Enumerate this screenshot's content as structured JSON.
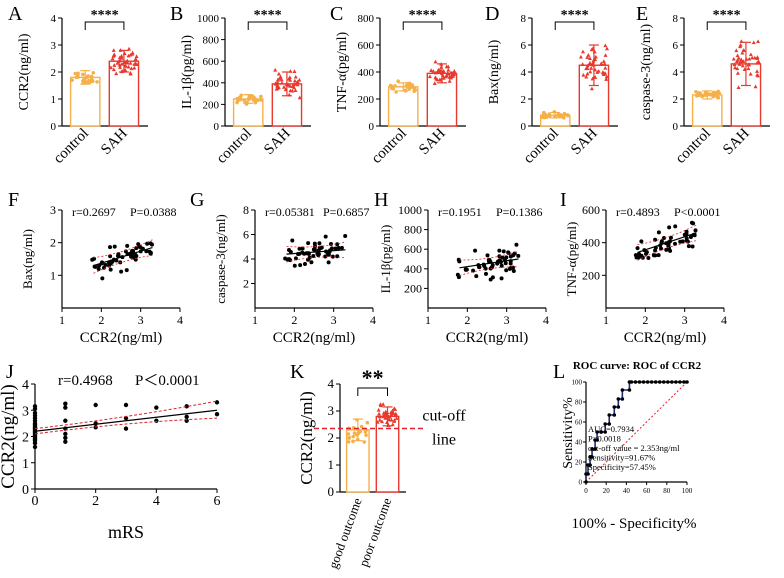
{
  "chart_data": [
    {
      "id": "A",
      "type": "bar",
      "panel_label": "A",
      "ylabel": "CCR2(ng/ml)",
      "ylim": [
        0,
        4
      ],
      "yticks": [
        0,
        1,
        2,
        3,
        4
      ],
      "categories": [
        "control",
        "SAH"
      ],
      "values": [
        1.8,
        2.4
      ],
      "errors": [
        0.25,
        0.4
      ],
      "significance": "****",
      "colors": [
        "#f5b04a",
        "#e8392f"
      ]
    },
    {
      "id": "B",
      "type": "bar",
      "panel_label": "B",
      "ylabel": "IL-1β(pg/ml)",
      "ylim": [
        0,
        1000
      ],
      "yticks": [
        0,
        200,
        400,
        600,
        800,
        1000
      ],
      "categories": [
        "control",
        "SAH"
      ],
      "values": [
        250,
        390
      ],
      "errors": [
        40,
        110
      ],
      "significance": "****",
      "colors": [
        "#f5b04a",
        "#e8392f"
      ]
    },
    {
      "id": "C",
      "type": "bar",
      "panel_label": "C",
      "ylabel": "TNF-α(pg/ml)",
      "ylim": [
        0,
        800
      ],
      "yticks": [
        0,
        200,
        400,
        600,
        800
      ],
      "categories": [
        "control",
        "SAH"
      ],
      "values": [
        290,
        390
      ],
      "errors": [
        30,
        70
      ],
      "significance": "****",
      "colors": [
        "#f5b04a",
        "#e8392f"
      ]
    },
    {
      "id": "D",
      "type": "bar",
      "panel_label": "D",
      "ylabel": "Bax(ng/ml)",
      "ylim": [
        0,
        8
      ],
      "yticks": [
        0,
        2,
        4,
        6,
        8
      ],
      "categories": [
        "control",
        "SAH"
      ],
      "values": [
        0.8,
        4.5
      ],
      "errors": [
        0.2,
        1.5
      ],
      "significance": "****",
      "colors": [
        "#f5b04a",
        "#e8392f"
      ]
    },
    {
      "id": "E",
      "type": "bar",
      "panel_label": "E",
      "ylabel": "caspase-3(ng/ml)",
      "ylim": [
        0,
        8
      ],
      "yticks": [
        0,
        2,
        4,
        6,
        8
      ],
      "categories": [
        "control",
        "SAH"
      ],
      "values": [
        2.3,
        4.6
      ],
      "errors": [
        0.3,
        1.6
      ],
      "significance": "****",
      "colors": [
        "#f5b04a",
        "#e8392f"
      ]
    },
    {
      "id": "F",
      "type": "scatter",
      "panel_label": "F",
      "xlabel": "CCR2(ng/ml)",
      "ylabel": "Bax(ng/ml)",
      "xlim": [
        1,
        4
      ],
      "ylim": [
        0,
        3
      ],
      "xticks": [
        1,
        2,
        3,
        4
      ],
      "yticks": [
        1,
        2,
        3
      ],
      "stat_r": "r=0.2697",
      "stat_p": "P=0.0388",
      "fit": {
        "x0": 1.8,
        "y0": 1.3,
        "x1": 3.3,
        "y1": 1.85
      },
      "seed": 11,
      "n_points": 55
    },
    {
      "id": "G",
      "type": "scatter",
      "panel_label": "G",
      "xlabel": "CCR2(ng/ml)",
      "ylabel": "caspase-3(ng/ml)",
      "xlim": [
        1,
        4
      ],
      "ylim": [
        0,
        8
      ],
      "xticks": [
        1,
        2,
        3,
        4
      ],
      "yticks": [
        2,
        4,
        6,
        8
      ],
      "stat_r": "r=0.05381",
      "stat_p": "P=0.6857",
      "fit": {
        "x0": 1.8,
        "y0": 4.4,
        "x1": 3.3,
        "y1": 4.75
      },
      "seed": 23,
      "n_points": 55
    },
    {
      "id": "H",
      "type": "scatter",
      "panel_label": "H",
      "xlabel": "CCR2(ng/ml)",
      "ylabel": "IL-1β(pg/ml)",
      "xlim": [
        1,
        4
      ],
      "ylim": [
        0,
        1000
      ],
      "xticks": [
        1,
        2,
        3,
        4
      ],
      "yticks": [
        200,
        400,
        600,
        800,
        1000
      ],
      "stat_r": "r=0.1951",
      "stat_p": "P=0.1386",
      "fit": {
        "x0": 1.8,
        "y0": 410,
        "x1": 3.3,
        "y1": 500
      },
      "seed": 37,
      "n_points": 55
    },
    {
      "id": "I",
      "type": "scatter",
      "panel_label": "I",
      "xlabel": "CCR2(ng/ml)",
      "ylabel": "TNF-α(pg/ml)",
      "xlim": [
        1,
        4
      ],
      "ylim": [
        0,
        600
      ],
      "xticks": [
        1,
        2,
        3,
        4
      ],
      "yticks": [
        200,
        400,
        600
      ],
      "stat_r": "r=0.4893",
      "stat_p": "P<0.0001",
      "fit": {
        "x0": 1.8,
        "y0": 340,
        "x1": 3.3,
        "y1": 460
      },
      "seed": 53,
      "n_points": 55
    },
    {
      "id": "J",
      "type": "scatter",
      "panel_label": "J",
      "xlabel": "mRS",
      "ylabel": "CCR2(ng/ml)",
      "xlim": [
        0,
        6
      ],
      "ylim": [
        0,
        4
      ],
      "xticks": [
        0,
        2,
        4,
        6
      ],
      "yticks": [
        0,
        1,
        2,
        3,
        4
      ],
      "stat_r": "r=0.4968",
      "stat_p": "P＜0.0001",
      "fit": {
        "x0": 0,
        "y0": 2.2,
        "x1": 6,
        "y1": 3.0
      },
      "points": [
        [
          0,
          1.6
        ],
        [
          0,
          1.75
        ],
        [
          0,
          1.85
        ],
        [
          0,
          1.9
        ],
        [
          0,
          1.95
        ],
        [
          0,
          2.0
        ],
        [
          0,
          2.05
        ],
        [
          0,
          2.1
        ],
        [
          0,
          2.15
        ],
        [
          0,
          2.2
        ],
        [
          0,
          2.25
        ],
        [
          0,
          2.3
        ],
        [
          0,
          2.35
        ],
        [
          0,
          2.4
        ],
        [
          0,
          2.45
        ],
        [
          0,
          2.5
        ],
        [
          0,
          2.6
        ],
        [
          0,
          2.7
        ],
        [
          0,
          2.8
        ],
        [
          0,
          2.9
        ],
        [
          0,
          3.05
        ],
        [
          0,
          3.15
        ],
        [
          1,
          1.8
        ],
        [
          1,
          1.95
        ],
        [
          1,
          2.1
        ],
        [
          1,
          2.3
        ],
        [
          1,
          2.6
        ],
        [
          1,
          3.1
        ],
        [
          1,
          3.25
        ],
        [
          2,
          2.35
        ],
        [
          2,
          2.5
        ],
        [
          2,
          3.2
        ],
        [
          3,
          2.3
        ],
        [
          3,
          2.7
        ],
        [
          3,
          3.2
        ],
        [
          4,
          2.6
        ],
        [
          4,
          3.1
        ],
        [
          5,
          2.6
        ],
        [
          5,
          2.75
        ],
        [
          5,
          3.15
        ],
        [
          6,
          2.85
        ],
        [
          6,
          3.3
        ]
      ]
    },
    {
      "id": "K",
      "type": "bar",
      "panel_label": "K",
      "ylabel": "CCR2(ng/ml)",
      "ylim": [
        0,
        4
      ],
      "yticks": [
        0,
        1,
        2,
        3,
        4
      ],
      "categories": [
        "good outcome",
        "poor outcome"
      ],
      "values": [
        2.3,
        2.8
      ],
      "errors": [
        0.4,
        0.35
      ],
      "significance": "**",
      "cutoff": 2.353,
      "cutoff_label_1": "cut-off",
      "cutoff_label_2": "line",
      "colors": [
        "#f5b04a",
        "#e8392f"
      ]
    },
    {
      "id": "L",
      "type": "line",
      "panel_label": "L",
      "title": "ROC curve: ROC of CCR2",
      "xlabel": "100% - Specificity%",
      "ylabel": "Sensitivity%",
      "xlim": [
        0,
        100
      ],
      "ylim": [
        0,
        100
      ],
      "xticks": [
        0,
        20,
        40,
        60,
        80,
        100
      ],
      "yticks": [
        0,
        20,
        40,
        60,
        80,
        100
      ],
      "annotations": [
        "AUC=0.7934",
        "P=0.0018",
        "cut-off value = 2.353ng/ml",
        "Sensitivity=91.67%",
        "Specificity=57.45%"
      ],
      "roc": [
        [
          0,
          0
        ],
        [
          0,
          8
        ],
        [
          2,
          8
        ],
        [
          2,
          17
        ],
        [
          4,
          17
        ],
        [
          4,
          25
        ],
        [
          6,
          25
        ],
        [
          6,
          33
        ],
        [
          9,
          33
        ],
        [
          9,
          42
        ],
        [
          11,
          42
        ],
        [
          11,
          50
        ],
        [
          15,
          50
        ],
        [
          15,
          50
        ],
        [
          19,
          50
        ],
        [
          19,
          58
        ],
        [
          23,
          58
        ],
        [
          23,
          67
        ],
        [
          28,
          67
        ],
        [
          28,
          75
        ],
        [
          32,
          75
        ],
        [
          32,
          83
        ],
        [
          36,
          83
        ],
        [
          36,
          92
        ],
        [
          43,
          92
        ],
        [
          43,
          100
        ],
        [
          100,
          100
        ]
      ]
    }
  ]
}
